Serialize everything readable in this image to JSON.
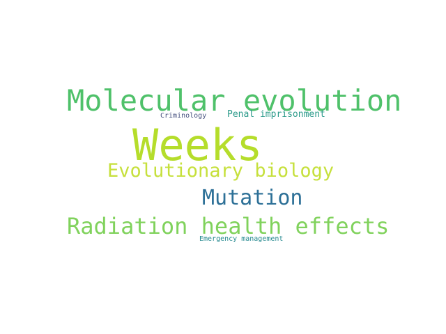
{
  "words": [
    {
      "text": "Molecular evolution",
      "color": "#4fc16a"
    },
    {
      "text": "Criminology",
      "color": "#46517f"
    },
    {
      "text": "Penal imprisonment",
      "color": "#2b9a8a"
    },
    {
      "text": "Weeks",
      "color": "#b5dd2b"
    },
    {
      "text": "Evolutionary biology",
      "color": "#c6e03c"
    },
    {
      "text": "Mutation",
      "color": "#2d7097"
    },
    {
      "text": "Radiation health effects",
      "color": "#80d25c"
    },
    {
      "text": "Emergency management",
      "color": "#23888e"
    }
  ]
}
